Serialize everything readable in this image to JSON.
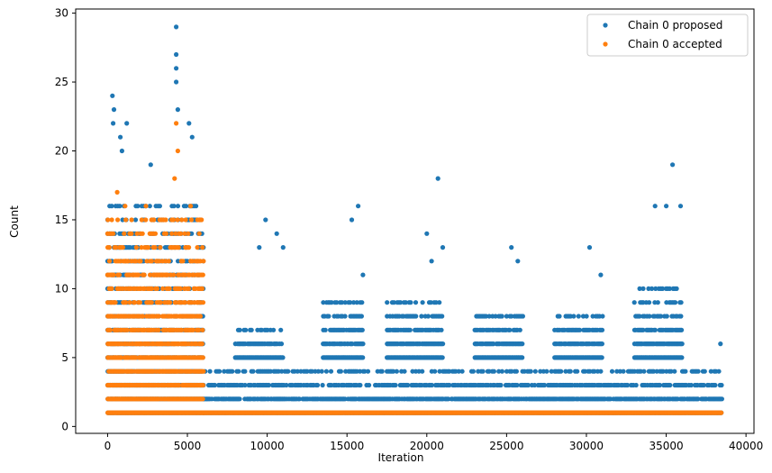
{
  "chart_data": {
    "type": "scatter",
    "title": "",
    "xlabel": "Iteration",
    "ylabel": "Count",
    "xlim": [
      -2000,
      40500
    ],
    "ylim": [
      -0.5,
      30.3
    ],
    "xticks": [
      0,
      5000,
      10000,
      15000,
      20000,
      25000,
      30000,
      35000,
      40000
    ],
    "yticks": [
      0,
      5,
      10,
      15,
      20,
      25,
      30
    ],
    "xtick_labels": [
      "0",
      "5000",
      "10000",
      "15000",
      "20000",
      "25000",
      "30000",
      "35000",
      "40000"
    ],
    "ytick_labels": [
      "0",
      "5",
      "10",
      "15",
      "20",
      "25",
      "30"
    ],
    "grid": false,
    "legend": {
      "position": "top-right",
      "entries": [
        "Chain 0 proposed",
        "Chain 0 accepted"
      ]
    },
    "colors": {
      "proposed": "#1f77b4",
      "accepted": "#ff7f0e"
    },
    "series": [
      {
        "name": "Chain 0 proposed",
        "color": "#1f77b4",
        "note_bands": "dense rows of points at integer counts",
        "bands": [
          {
            "x": [
              0,
              6000
            ],
            "y": [
              1,
              16
            ]
          },
          {
            "x": [
              6000,
              38500
            ],
            "y": [
              1,
              4
            ]
          },
          {
            "x": [
              8000,
              11000
            ],
            "y": [
              5,
              7
            ]
          },
          {
            "x": [
              13500,
              16000
            ],
            "y": [
              5,
              9
            ]
          },
          {
            "x": [
              17500,
              21000
            ],
            "y": [
              5,
              9
            ]
          },
          {
            "x": [
              23000,
              26000
            ],
            "y": [
              5,
              8
            ]
          },
          {
            "x": [
              28000,
              31000
            ],
            "y": [
              5,
              8
            ]
          },
          {
            "x": [
              33000,
              36000
            ],
            "y": [
              5,
              10
            ]
          }
        ],
        "notable_points": [
          {
            "x": 300,
            "y": 24
          },
          {
            "x": 400,
            "y": 23
          },
          {
            "x": 350,
            "y": 22
          },
          {
            "x": 1200,
            "y": 22
          },
          {
            "x": 800,
            "y": 21
          },
          {
            "x": 900,
            "y": 20
          },
          {
            "x": 2700,
            "y": 19
          },
          {
            "x": 4300,
            "y": 29
          },
          {
            "x": 4300,
            "y": 27
          },
          {
            "x": 4300,
            "y": 26
          },
          {
            "x": 4300,
            "y": 25
          },
          {
            "x": 4400,
            "y": 23
          },
          {
            "x": 5100,
            "y": 22
          },
          {
            "x": 5300,
            "y": 21
          },
          {
            "x": 9500,
            "y": 13
          },
          {
            "x": 9900,
            "y": 15
          },
          {
            "x": 10600,
            "y": 14
          },
          {
            "x": 11000,
            "y": 13
          },
          {
            "x": 15300,
            "y": 15
          },
          {
            "x": 15700,
            "y": 16
          },
          {
            "x": 16000,
            "y": 11
          },
          {
            "x": 20000,
            "y": 14
          },
          {
            "x": 20300,
            "y": 12
          },
          {
            "x": 20700,
            "y": 18
          },
          {
            "x": 21000,
            "y": 13
          },
          {
            "x": 25300,
            "y": 13
          },
          {
            "x": 25700,
            "y": 12
          },
          {
            "x": 30200,
            "y": 13
          },
          {
            "x": 30900,
            "y": 11
          },
          {
            "x": 34300,
            "y": 16
          },
          {
            "x": 35000,
            "y": 16
          },
          {
            "x": 35400,
            "y": 19
          },
          {
            "x": 35900,
            "y": 16
          },
          {
            "x": 38400,
            "y": 6
          }
        ]
      },
      {
        "name": "Chain 0 accepted",
        "color": "#ff7f0e",
        "bands": [
          {
            "x": [
              0,
              6000
            ],
            "y": [
              1,
              15
            ]
          },
          {
            "x": [
              6000,
              38500
            ],
            "y": [
              1,
              1
            ]
          }
        ],
        "notable_points": [
          {
            "x": 4300,
            "y": 22
          },
          {
            "x": 4400,
            "y": 20
          },
          {
            "x": 4200,
            "y": 18
          },
          {
            "x": 600,
            "y": 17
          },
          {
            "x": 1100,
            "y": 16
          },
          {
            "x": 5200,
            "y": 16
          },
          {
            "x": 2400,
            "y": 16
          }
        ]
      }
    ]
  }
}
